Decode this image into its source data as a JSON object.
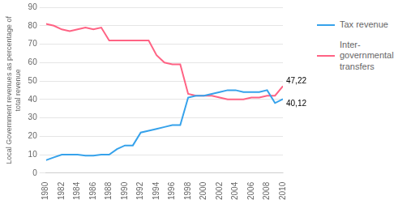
{
  "chart_data": {
    "type": "line",
    "x": [
      1980,
      1981,
      1982,
      1983,
      1984,
      1985,
      1986,
      1987,
      1988,
      1989,
      1990,
      1991,
      1992,
      1993,
      1994,
      1995,
      1996,
      1997,
      1998,
      1999,
      2000,
      2001,
      2002,
      2003,
      2004,
      2005,
      2006,
      2007,
      2008,
      2009,
      2010
    ],
    "series": [
      {
        "name": "Tax revenue",
        "values": [
          7,
          8.5,
          10,
          10,
          10,
          9.5,
          9.5,
          10,
          10,
          13,
          15,
          15,
          22,
          23,
          24,
          25,
          26,
          26,
          41,
          42,
          42,
          43,
          44,
          45,
          45,
          44,
          44,
          44,
          45,
          38,
          40.12
        ]
      },
      {
        "name": "Inter-governmental\ntransfers",
        "values": [
          81,
          80,
          78,
          77,
          78,
          79,
          78,
          79,
          72,
          72,
          72,
          72,
          72,
          72,
          64,
          60,
          59,
          59,
          43,
          42,
          42,
          42,
          41,
          40,
          40,
          40,
          41,
          41,
          42,
          42,
          47.22
        ]
      }
    ],
    "ylabel": "Local Government revenues as percentage of\ntotal revenue",
    "xlim": [
      1980,
      2010
    ],
    "xticks": [
      1980,
      1982,
      1984,
      1986,
      1988,
      1990,
      1992,
      1994,
      1996,
      1998,
      2000,
      2002,
      2004,
      2006,
      2008,
      2010
    ],
    "ylim": [
      0,
      90
    ],
    "yticks": [
      0,
      10,
      20,
      30,
      40,
      50,
      60,
      70,
      80,
      90
    ],
    "grid": true,
    "legend": "right",
    "annotations": [
      {
        "text": "47,22",
        "x": 2010,
        "y": 47.22
      },
      {
        "text": "40,12",
        "x": 2010,
        "y": 40.12
      }
    ]
  }
}
